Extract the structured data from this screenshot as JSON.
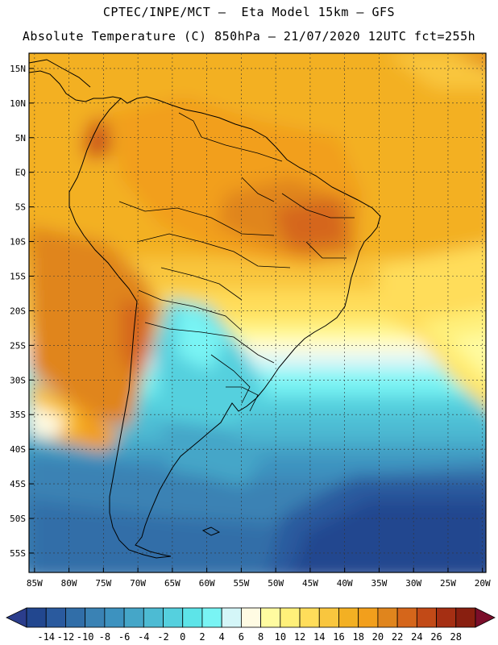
{
  "header": {
    "line1": "CPTEC/INPE/MCT –  Eta Model 15km – GFS",
    "line2": "Absolute Temperature (C) 850hPa – 21/07/2020 12UTC fct=255h"
  },
  "map": {
    "lat_labels": [
      "15N",
      "10N",
      "5N",
      "EQ",
      "5S",
      "10S",
      "15S",
      "20S",
      "25S",
      "30S",
      "35S",
      "40S",
      "45S",
      "50S",
      "55S"
    ],
    "lon_labels": [
      "85W",
      "80W",
      "75W",
      "70W",
      "65W",
      "60W",
      "55W",
      "50W",
      "45W",
      "40W",
      "35W",
      "30W",
      "25W",
      "20W"
    ],
    "lat_range": [
      17.2,
      -57.8
    ],
    "lon_range": [
      -85.8,
      -19.5
    ]
  },
  "colorbar": {
    "labels": [
      "-14",
      "-12",
      "-10",
      "-8",
      "-6",
      "-4",
      "-2",
      "0",
      "2",
      "4",
      "6",
      "8",
      "10",
      "12",
      "14",
      "16",
      "18",
      "20",
      "22",
      "24",
      "26",
      "28"
    ],
    "colors": [
      "#22478f",
      "#2a5a9e",
      "#316ea8",
      "#3a82b4",
      "#3d92bf",
      "#45a6c8",
      "#4dbbd3",
      "#55d0de",
      "#5de4e8",
      "#79f4f4",
      "#d4f6f8",
      "#fffbe3",
      "#fffba0",
      "#fff07a",
      "#ffdd5a",
      "#f9c63e",
      "#f3b023",
      "#f29f1c",
      "#e0851d",
      "#d5661b",
      "#c24a17",
      "#a52f13",
      "#891f10"
    ],
    "low_color": "#2b3d8c",
    "high_color": "#7b0e2a"
  }
}
